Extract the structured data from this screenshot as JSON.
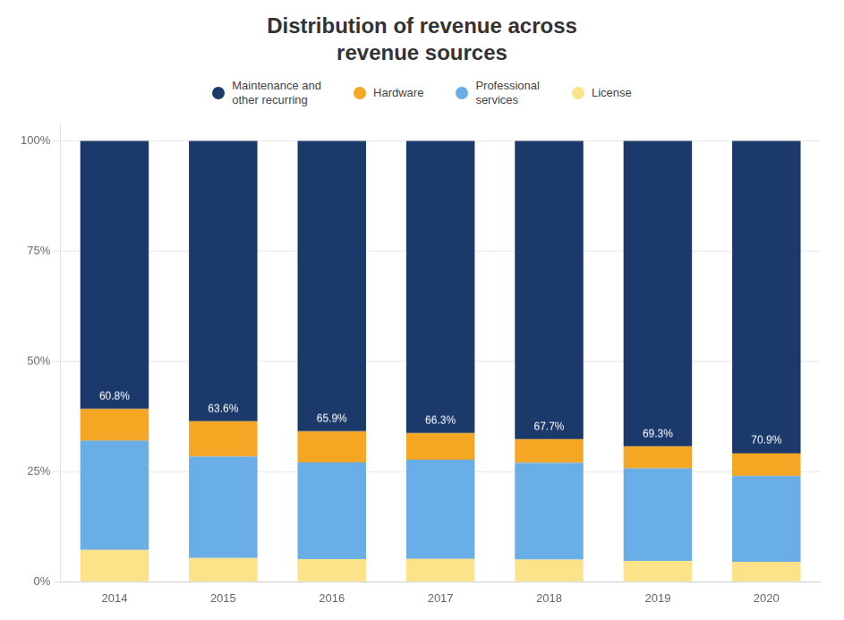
{
  "chart_data": {
    "type": "bar",
    "title": "Distribution of revenue across\nrevenue sources",
    "categories": [
      "2014",
      "2015",
      "2016",
      "2017",
      "2018",
      "2019",
      "2020"
    ],
    "series": [
      {
        "name": "License",
        "color": "#fce38a",
        "values": [
          7.2,
          5.4,
          5.1,
          5.2,
          5.0,
          4.7,
          4.5
        ]
      },
      {
        "name": "Professional\nservices",
        "color": "#6aaee8",
        "values": [
          24.8,
          23.0,
          22.0,
          22.5,
          22.0,
          21.0,
          19.5
        ]
      },
      {
        "name": "Hardware",
        "color": "#f5a623",
        "values": [
          7.2,
          8.0,
          7.0,
          6.0,
          5.3,
          5.0,
          5.1
        ]
      },
      {
        "name": "Maintenance and\nother recurring",
        "color": "#1b3a6b",
        "values": [
          60.8,
          63.6,
          65.9,
          66.3,
          67.7,
          69.3,
          70.9
        ],
        "value_labels": [
          "60.8%",
          "63.6%",
          "65.9%",
          "66.3%",
          "67.7%",
          "69.3%",
          "70.9%"
        ]
      }
    ],
    "stacked": true,
    "ylim": [
      0,
      104
    ],
    "yticks": [
      {
        "value": 0,
        "label": "0%"
      },
      {
        "value": 25,
        "label": "25%"
      },
      {
        "value": 50,
        "label": "50%"
      },
      {
        "value": 75,
        "label": "75%"
      },
      {
        "value": 100,
        "label": "100%"
      }
    ],
    "grid": "y",
    "legend": "top"
  }
}
